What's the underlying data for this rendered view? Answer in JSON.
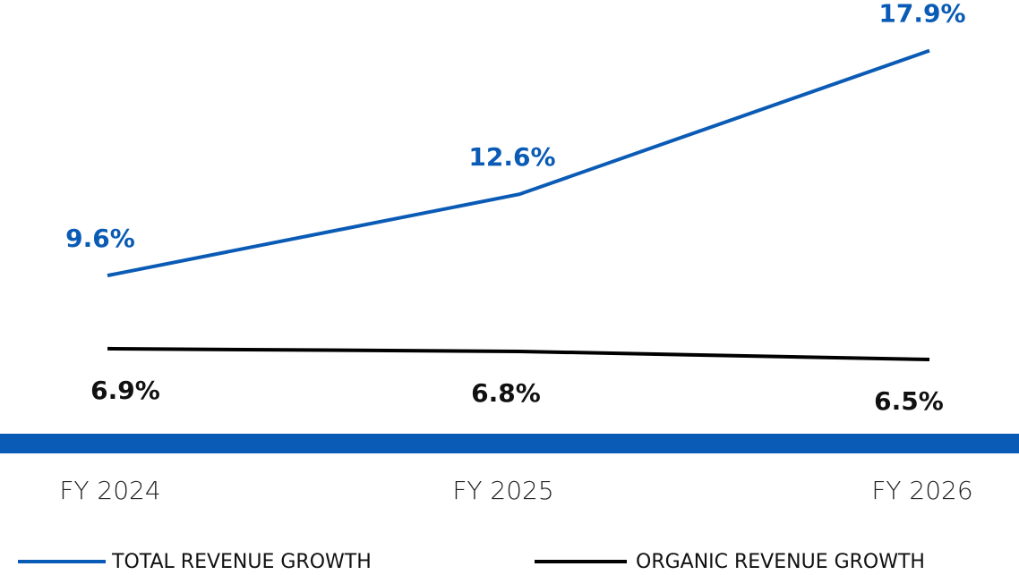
{
  "chart_data": {
    "type": "line",
    "categories": [
      "FY 2024",
      "FY 2025",
      "FY 2026"
    ],
    "series": [
      {
        "name": "TOTAL REVENUE GROWTH",
        "color": "#0a5bb5",
        "values": [
          9.6,
          12.6,
          17.9
        ],
        "value_labels": [
          "9.6%",
          "12.6%",
          "17.9%"
        ]
      },
      {
        "name": "ORGANIC REVENUE GROWTH",
        "color": "#000000",
        "values": [
          6.9,
          6.8,
          6.5
        ],
        "value_labels": [
          "6.9%",
          "6.8%",
          "6.5%"
        ]
      }
    ],
    "ylim": [
      0,
      20
    ],
    "legend": "bottom",
    "band_color": "#0a5bb5"
  }
}
